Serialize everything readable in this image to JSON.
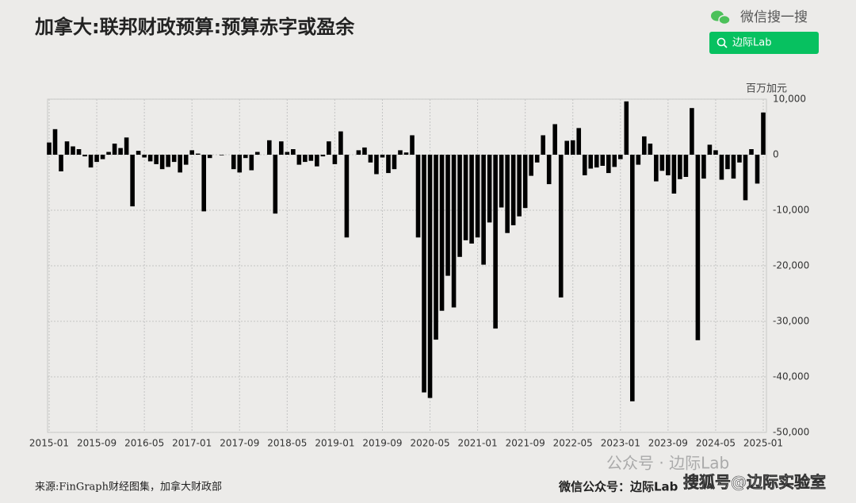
{
  "chart_data": {
    "type": "bar",
    "title": "加拿大:联邦财政预算:预算赤字或盈余",
    "unit": "百万加元",
    "source": "来源:FinGraph财经图集，加拿大财政部",
    "color": "#000000",
    "grid": true,
    "ylim": [
      -50000,
      10000
    ],
    "yticks": [
      {
        "value": 10000,
        "label": "10,000"
      },
      0,
      {
        "value": -10000,
        "label": "-10,000"
      },
      {
        "value": -20000,
        "label": "-20,000"
      },
      {
        "value": -30000,
        "label": "-30,000"
      },
      {
        "value": -40000,
        "label": "-40,000"
      },
      {
        "value": -50000,
        "label": "-50,000"
      }
    ],
    "categories": [
      "2015-01",
      null,
      null,
      null,
      null,
      null,
      null,
      null,
      "2015-09",
      null,
      null,
      null,
      null,
      null,
      null,
      null,
      "2016-05",
      null,
      null,
      null,
      null,
      null,
      null,
      null,
      "2017-01",
      null,
      null,
      null,
      null,
      null,
      null,
      null,
      "2017-09",
      null,
      null,
      null,
      null,
      null,
      null,
      null,
      "2018-05",
      null,
      null,
      null,
      null,
      null,
      null,
      null,
      "2019-01",
      null,
      null,
      null,
      null,
      null,
      null,
      null,
      "2019-09",
      null,
      null,
      null,
      null,
      null,
      null,
      null,
      "2020-05",
      null,
      null,
      null,
      null,
      null,
      null,
      null,
      "2021-01",
      null,
      null,
      null,
      null,
      null,
      null,
      null,
      "2021-09",
      null,
      null,
      null,
      null,
      null,
      null,
      null,
      "2022-05",
      null,
      null,
      null,
      null,
      null,
      null,
      null,
      "2023-01",
      null,
      null,
      null,
      null,
      null,
      null,
      null,
      "2023-09",
      null,
      null,
      null,
      null,
      null,
      null,
      null,
      "2024-05",
      null,
      null,
      null,
      null,
      null,
      null,
      null,
      "2025-01"
    ],
    "values": [
      2200,
      4600,
      -3000,
      2400,
      1500,
      1000,
      -300,
      -2300,
      -1300,
      -800,
      500,
      2000,
      1200,
      3100,
      -9300,
      700,
      -500,
      -1200,
      -1700,
      -2600,
      -2200,
      -1300,
      -3200,
      -1800,
      800,
      200,
      -10200,
      -600,
      0,
      -100,
      0,
      -2600,
      -3200,
      -600,
      -2800,
      500,
      0,
      2600,
      -10600,
      2400,
      500,
      1000,
      -1800,
      -1300,
      -1100,
      -2100,
      -300,
      2400,
      -1700,
      4200,
      -14900,
      0,
      800,
      1300,
      -1400,
      -3500,
      -500,
      -3300,
      -2600,
      800,
      400,
      3500,
      -14900,
      -42800,
      -43800,
      -33300,
      -28100,
      -21800,
      -27500,
      -18400,
      -15400,
      -16000,
      -14900,
      -19800,
      -12200,
      -31300,
      -9500,
      -14100,
      -12700,
      -11100,
      -9600,
      -3800,
      -1400,
      3500,
      -5300,
      5500,
      -25700,
      2500,
      2600,
      4800,
      -3700,
      -2500,
      -2300,
      -2000,
      -3300,
      -2200,
      -800,
      9600,
      -44400,
      -1800,
      3300,
      2000,
      -4800,
      -2900,
      -3700,
      -7000,
      -4400,
      -4000,
      8400,
      -33400,
      -4300,
      1800,
      800,
      -4500,
      -2600,
      -4300,
      -1400,
      -8200,
      1000,
      -5200,
      7600
    ]
  },
  "overlay": {
    "wechat_search": "微信搜一搜",
    "search_box": "边际Lab",
    "watermark": "公众号 · 边际Lab",
    "sohu": "搜狐号@边际实验室",
    "footer_right": "微信公众号：边际Lab"
  }
}
